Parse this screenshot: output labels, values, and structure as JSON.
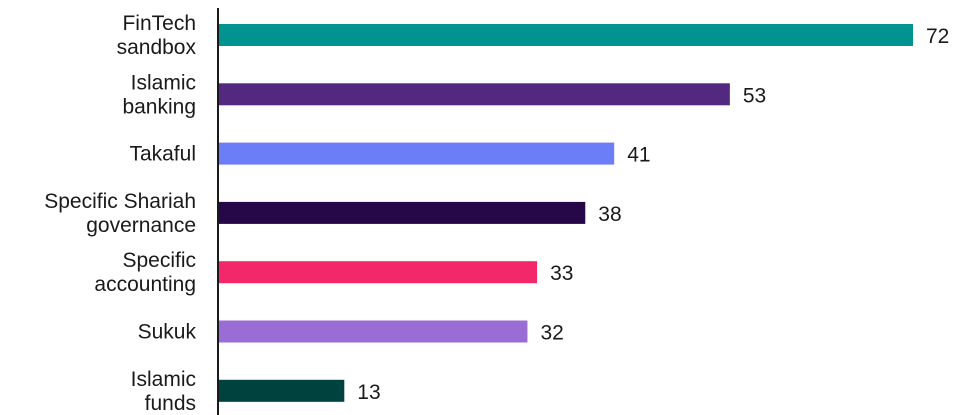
{
  "chart_data": {
    "type": "bar",
    "orientation": "horizontal",
    "categories": [
      [
        "FinTech",
        "sandbox"
      ],
      [
        "Islamic",
        "banking"
      ],
      [
        "Takaful"
      ],
      [
        "Specific Shariah",
        "governance"
      ],
      [
        "Specific",
        "accounting"
      ],
      [
        "Sukuk"
      ],
      [
        "Islamic",
        "funds"
      ]
    ],
    "values": [
      72,
      53,
      41,
      38,
      33,
      32,
      13
    ],
    "colors": [
      "#00938f",
      "#52297f",
      "#6b7ef7",
      "#260848",
      "#f2286a",
      "#9a6cd6",
      "#00433e"
    ],
    "xlim": [
      0,
      72
    ],
    "grid": false,
    "title": "",
    "xlabel": "",
    "ylabel": ""
  }
}
